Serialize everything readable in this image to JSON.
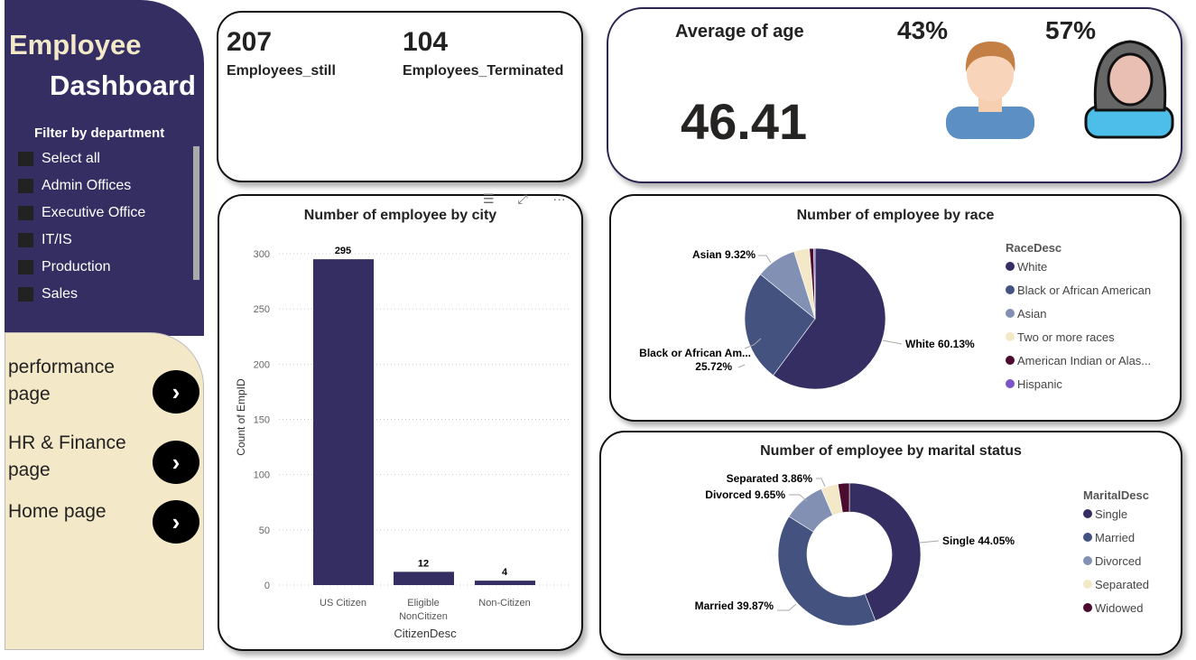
{
  "sidebar": {
    "title_line1": "Employee",
    "title_line2": "Dashboard",
    "filter_label": "Filter by department",
    "filters": [
      "Select all",
      "Admin Offices",
      "Executive Office",
      "IT/IS",
      "Production",
      "Sales"
    ]
  },
  "nav": [
    {
      "label": "performance page"
    },
    {
      "label": "HR & Finance page"
    },
    {
      "label": "Home page"
    }
  ],
  "nav_icon": "chevron-right-icon",
  "kpi": {
    "still_value": "207",
    "still_label": "Employees_still",
    "term_value": "104",
    "term_label": "Employees_Terminated"
  },
  "age": {
    "label": "Average of age",
    "value": "46.41",
    "male_pct": "43%",
    "female_pct": "57%"
  },
  "colors": {
    "primary": "#352E62",
    "cream": "#F3E9C8"
  },
  "chart_data": [
    {
      "type": "bar",
      "title": "Number of employee by city",
      "xlabel": "CitizenDesc",
      "ylabel": "Count of EmpID",
      "categories": [
        "US Citizen",
        "Eligible NonCitizen",
        "Non-Citizen"
      ],
      "category_lines": [
        [
          "US Citizen"
        ],
        [
          "Eligible",
          "NonCitizen"
        ],
        [
          "Non-Citizen"
        ]
      ],
      "values": [
        295,
        12,
        4
      ],
      "ylim": [
        0,
        300
      ],
      "yticks": [
        0,
        50,
        100,
        150,
        200,
        250,
        300
      ],
      "grid": true,
      "color": "#352E62"
    },
    {
      "type": "pie",
      "title": "Number of employee by race",
      "legend_title": "RaceDesc",
      "legend": "right",
      "slices": [
        {
          "name": "White",
          "value": 60.13,
          "label": "White 60.13%",
          "color": "#352E62"
        },
        {
          "name": "Black or African American",
          "legend_label": "Black or African American",
          "value": 25.72,
          "label": "Black or African Am...",
          "label2": "25.72%",
          "color": "#44527F"
        },
        {
          "name": "Asian",
          "value": 9.32,
          "label": "Asian 9.32%",
          "color": "#8290B4"
        },
        {
          "name": "Two or more races",
          "value": 3.54,
          "color": "#F3E9C8"
        },
        {
          "name": "American Indian or Alaska Native",
          "legend_label": "American Indian or Alas...",
          "value": 0.96,
          "color": "#4A0B2E"
        },
        {
          "name": "Hispanic",
          "value": 0.33,
          "color": "#7B55C8"
        }
      ]
    },
    {
      "type": "pie",
      "donut": true,
      "title": "Number of employee by marital status",
      "legend_title": "MaritalDesc",
      "legend": "right",
      "slices": [
        {
          "name": "Single",
          "value": 44.05,
          "label": "Single 44.05%",
          "color": "#352E62"
        },
        {
          "name": "Married",
          "value": 39.87,
          "label": "Married 39.87%",
          "color": "#44527F"
        },
        {
          "name": "Divorced",
          "value": 9.65,
          "label": "Divorced 9.65%",
          "color": "#8290B4"
        },
        {
          "name": "Separated",
          "value": 3.86,
          "label": "Separated 3.86%",
          "color": "#F3E9C8"
        },
        {
          "name": "Widowed",
          "value": 2.57,
          "color": "#4A0B2E"
        }
      ]
    }
  ]
}
